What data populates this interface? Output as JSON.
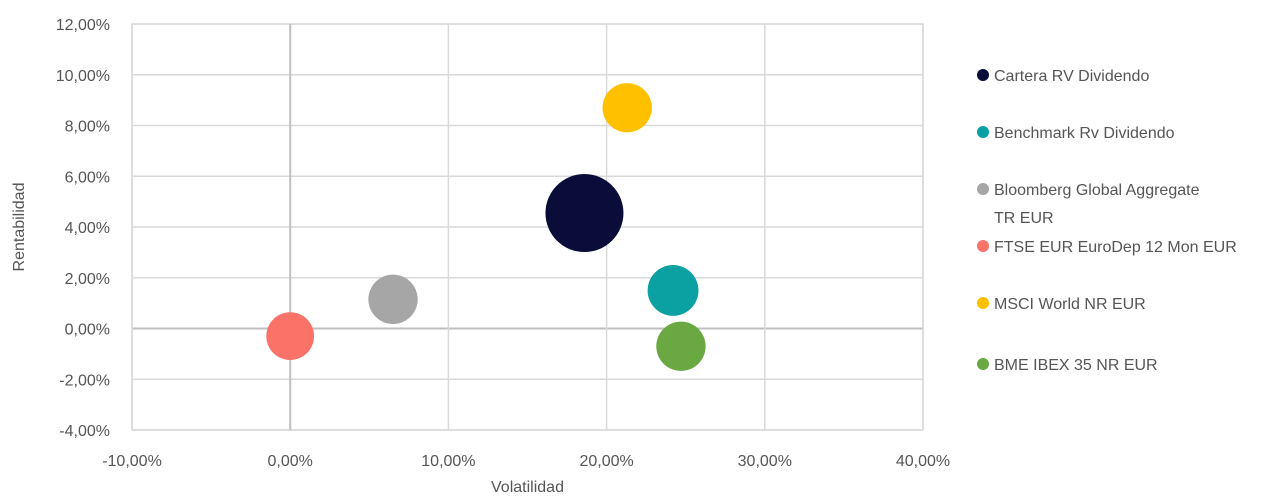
{
  "chart_data": {
    "type": "scatter",
    "subtype": "bubble",
    "title": "",
    "xlabel": "Volatilidad",
    "ylabel": "Rentabilidad",
    "xlim": [
      -10,
      40
    ],
    "ylim": [
      -4,
      12
    ],
    "x_tick_values": [
      -10,
      0,
      10,
      20,
      30,
      40
    ],
    "x_tick_labels": [
      "-10,00%",
      "0,00%",
      "10,00%",
      "20,00%",
      "30,00%",
      "40,00%"
    ],
    "y_tick_values": [
      -4,
      -2,
      0,
      2,
      4,
      6,
      8,
      10,
      12
    ],
    "y_tick_labels": [
      "-4,00%",
      "-2,00%",
      "0,00%",
      "2,00%",
      "4,00%",
      "6,00%",
      "8,00%",
      "10,00%",
      "12,00%"
    ],
    "grid": true,
    "legend_position": "right",
    "series": [
      {
        "name": "Cartera RV Dividendo",
        "x": 18.6,
        "y": 4.55,
        "size": 4.0,
        "color": "#0a0c3a"
      },
      {
        "name": "Benchmark Rv Dividendo",
        "x": 24.2,
        "y": 1.5,
        "size": 1.7,
        "color": "#0ba0a2"
      },
      {
        "name": "Bloomberg Global Aggregate TR EUR",
        "legend_lines": [
          "Bloomberg Global Aggregate",
          "TR EUR"
        ],
        "x": 6.5,
        "y": 1.15,
        "size": 1.6,
        "color": "#a6a6a6"
      },
      {
        "name": "FTSE EUR EuroDep 12 Mon EUR",
        "x": 0.0,
        "y": -0.3,
        "size": 1.5,
        "color": "#fa7268"
      },
      {
        "name": "MSCI World NR EUR",
        "x": 21.3,
        "y": 8.7,
        "size": 1.6,
        "color": "#ffc000"
      },
      {
        "name": "BME IBEX 35 NR EUR",
        "x": 24.7,
        "y": -0.7,
        "size": 1.6,
        "color": "#6aa842"
      }
    ]
  }
}
